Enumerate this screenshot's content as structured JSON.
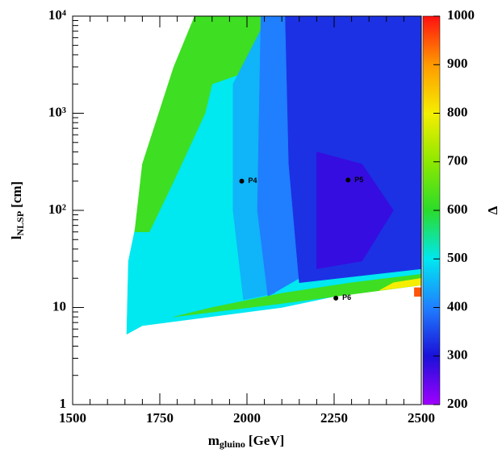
{
  "chart_data": {
    "type": "heatmap",
    "x_label": {
      "main": "m",
      "sub": "gluino",
      "unit": "[GeV]"
    },
    "y_label": {
      "main": "l",
      "sub": "NLSP",
      "unit": "[cm]"
    },
    "z_label": "Δ",
    "xlim": [
      1500,
      2500
    ],
    "xticks": [
      1500,
      1750,
      2000,
      2250,
      2500
    ],
    "ylim": [
      1,
      10000
    ],
    "yticks": [
      1,
      10,
      {
        "value": 100,
        "label": "10²"
      },
      {
        "value": 1000,
        "label": "10³"
      },
      {
        "value": 10000,
        "label": "10⁴"
      }
    ],
    "log_y": true,
    "zlim": [
      200,
      1000
    ],
    "zticks": [
      200,
      300,
      400,
      500,
      600,
      700,
      800,
      900,
      1000
    ],
    "colors": [
      "#a000ff",
      "#1a10d8",
      "#1f7fff",
      "#00e8f0",
      "#2adc2a",
      "#8ee800",
      "#f5ee00",
      "#ff9a00",
      "#ff1010"
    ],
    "regions": [
      {
        "value": 500,
        "x": [
          1655,
          1700,
          2100,
          2500,
          2500,
          1870,
          1780,
          1690,
          1660
        ],
        "y": [
          5.3,
          6.5,
          10,
          20,
          10000,
          10000,
          2000,
          100,
          30
        ]
      },
      {
        "value": 620,
        "x": [
          1678,
          1700,
          1790,
          1850,
          2040,
          2040,
          1900,
          1880,
          1790,
          1720
        ],
        "y": [
          60,
          300,
          3000,
          10000,
          10000,
          3000,
          2000,
          1000,
          200,
          60
        ]
      },
      {
        "value": 450,
        "x": [
          1960,
          2060,
          2080,
          1990,
          1960
        ],
        "y": [
          2000,
          10000,
          14,
          12,
          100
        ]
      },
      {
        "value": 400,
        "x": [
          2040,
          2110,
          2150,
          2060,
          2030
        ],
        "y": [
          10000,
          10000,
          20,
          13,
          100
        ]
      },
      {
        "value": 330,
        "x": [
          2110,
          2500,
          2500,
          2150,
          2120
        ],
        "y": [
          10000,
          10000,
          25,
          18,
          300
        ]
      },
      {
        "value": 280,
        "x": [
          2200,
          2330,
          2420,
          2330,
          2200
        ],
        "y": [
          400,
          300,
          100,
          30,
          25
        ]
      },
      {
        "value": 620,
        "x": [
          1790,
          2100,
          2500,
          2500,
          2300,
          2100,
          1900
        ],
        "y": [
          8,
          11,
          17,
          22,
          18,
          14,
          10
        ]
      },
      {
        "value": 800,
        "x": [
          2380,
          2500,
          2500,
          2420
        ],
        "y": [
          15,
          17,
          20,
          18
        ]
      },
      {
        "value": 950,
        "x": [
          2480,
          2500,
          2500,
          2480
        ],
        "y": [
          13,
          13,
          16,
          16
        ]
      }
    ],
    "points": [
      {
        "label": "P4",
        "x": 1985,
        "y": 200
      },
      {
        "label": "P5",
        "x": 2290,
        "y": 205
      },
      {
        "label": "P6",
        "x": 2255,
        "y": 12.5
      }
    ]
  }
}
